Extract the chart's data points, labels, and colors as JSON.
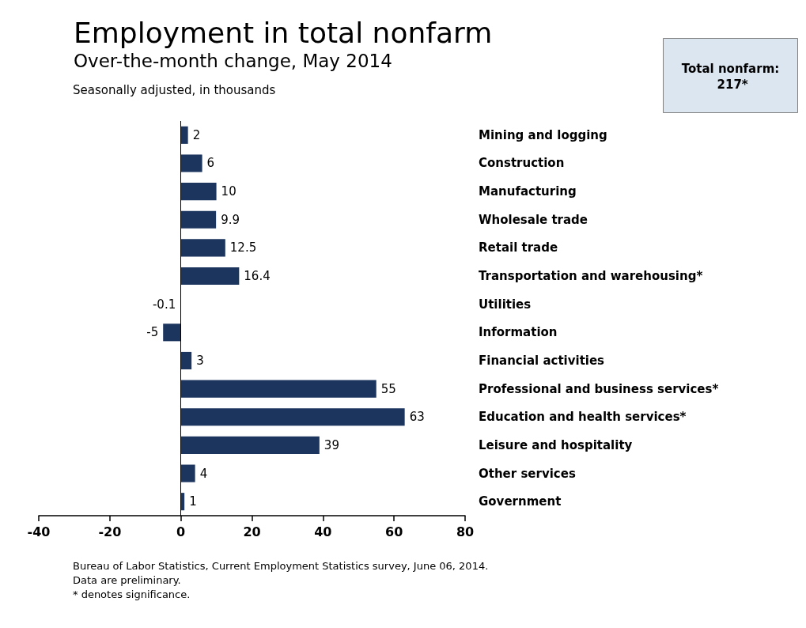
{
  "chart_data": {
    "type": "bar",
    "orientation": "horizontal",
    "title": "Employment in total nonfarm",
    "subtitle": "Over-the-month change, May 2014",
    "categories": [
      "Mining and logging",
      "Construction",
      "Manufacturing",
      "Wholesale trade",
      "Retail trade",
      "Transportation and warehousing*",
      "Utilities",
      "Information",
      "Financial activities",
      "Professional and business services*",
      "Education and health services*",
      "Leisure and hospitality",
      "Other services",
      "Government"
    ],
    "values": [
      2,
      6,
      10,
      9.9,
      12.5,
      16.4,
      -0.1,
      -5,
      3,
      55,
      63,
      39,
      4,
      1
    ],
    "color": "#1c355e",
    "data_labels": true,
    "xlim": [
      -40,
      80
    ],
    "xticks": [
      -40,
      -20,
      0,
      20,
      40,
      60,
      80
    ],
    "grid": false,
    "ref_lines": [
      {
        "axis": "x",
        "value": 0,
        "color": "#000000"
      }
    ],
    "annotations": [
      "Total nonfarm: 217*",
      "Seasonally adjusted, in thousands",
      "Bureau of Labor Statistics, Current Employment Statistics survey, June 06, 2014.",
      "Data are preliminary.",
      "* denotes significance."
    ]
  }
}
